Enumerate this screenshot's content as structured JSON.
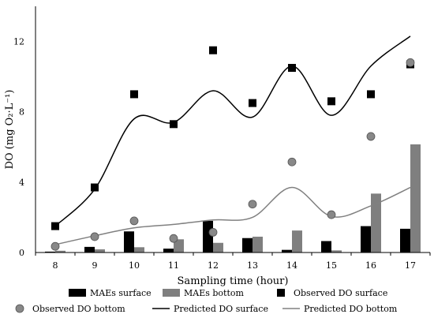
{
  "chart_data": {
    "type": "bar",
    "x": [
      8,
      9,
      10,
      11,
      12,
      13,
      14,
      15,
      16,
      17
    ],
    "xlabel": "Sampling time (hour)",
    "ylabel": "DO (mg O₂·L⁻¹)",
    "ylim": [
      0,
      14
    ],
    "yticks": [
      0,
      4,
      8,
      12
    ],
    "series": [
      {
        "name": "MAEs surface",
        "kind": "bar",
        "color": "#000000",
        "values": [
          0.05,
          0.32,
          1.2,
          0.22,
          1.8,
          0.82,
          0.15,
          0.65,
          1.5,
          1.35
        ]
      },
      {
        "name": "MAEs bottom",
        "kind": "bar",
        "color": "#7f7f7f",
        "values": [
          0.1,
          0.18,
          0.3,
          0.75,
          0.55,
          0.9,
          1.25,
          0.12,
          3.35,
          6.15
        ]
      },
      {
        "name": "Observed DO surface",
        "kind": "square",
        "color": "#000000",
        "values": [
          1.5,
          3.7,
          9.0,
          7.3,
          11.5,
          8.5,
          10.5,
          8.6,
          9.0,
          10.7
        ]
      },
      {
        "name": "Observed DO bottom",
        "kind": "circle",
        "color": "#888888",
        "values": [
          0.35,
          0.9,
          1.8,
          0.8,
          1.15,
          2.75,
          5.15,
          2.15,
          6.6,
          10.8
        ]
      },
      {
        "name": "Predicted DO surface",
        "kind": "line",
        "color": "#000000",
        "values": [
          1.5,
          3.6,
          7.6,
          7.4,
          9.2,
          7.7,
          10.6,
          7.8,
          10.6,
          12.3
        ]
      },
      {
        "name": "Predicted DO bottom",
        "kind": "line",
        "color": "#808080",
        "values": [
          0.45,
          0.95,
          1.4,
          1.6,
          1.85,
          2.0,
          3.7,
          2.05,
          2.65,
          3.7
        ]
      }
    ],
    "legend_position": "bottom"
  }
}
